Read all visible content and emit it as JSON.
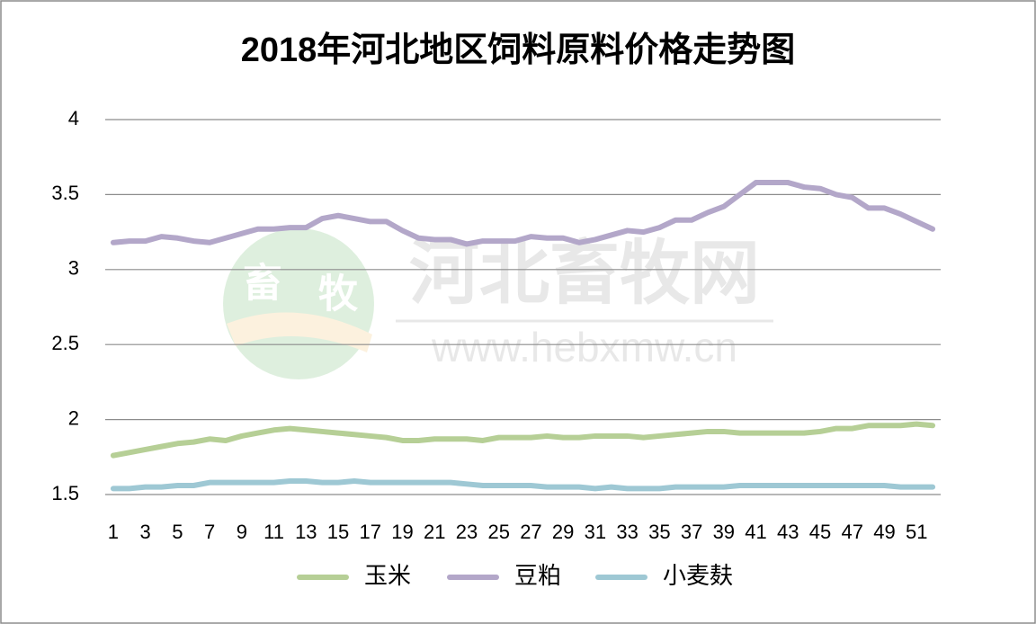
{
  "chart_data": {
    "type": "line",
    "title": "2018年河北地区饲料原料价格走势图",
    "categories": [
      1,
      null,
      3,
      null,
      5,
      null,
      7,
      null,
      9,
      null,
      11,
      null,
      13,
      null,
      15,
      null,
      17,
      null,
      19,
      null,
      21,
      null,
      23,
      null,
      25,
      null,
      27,
      null,
      29,
      null,
      31,
      null,
      33,
      null,
      35,
      null,
      37,
      null,
      39,
      null,
      41,
      null,
      43,
      null,
      45,
      null,
      47,
      null,
      49,
      null,
      51,
      null
    ],
    "series": [
      {
        "name": "玉米",
        "color": "#b6cf96",
        "values": [
          1.76,
          1.78,
          1.8,
          1.82,
          1.84,
          1.85,
          1.87,
          1.86,
          1.89,
          1.91,
          1.93,
          1.94,
          1.93,
          1.92,
          1.91,
          1.9,
          1.89,
          1.88,
          1.86,
          1.86,
          1.87,
          1.87,
          1.87,
          1.86,
          1.88,
          1.88,
          1.88,
          1.89,
          1.88,
          1.88,
          1.89,
          1.89,
          1.89,
          1.88,
          1.89,
          1.9,
          1.91,
          1.92,
          1.92,
          1.91,
          1.91,
          1.91,
          1.91,
          1.91,
          1.92,
          1.94,
          1.94,
          1.96,
          1.96,
          1.96,
          1.97,
          1.96
        ]
      },
      {
        "name": "豆粕",
        "color": "#b3a7c9",
        "values": [
          3.18,
          3.19,
          3.19,
          3.22,
          3.21,
          3.19,
          3.18,
          3.21,
          3.24,
          3.27,
          3.27,
          3.28,
          3.28,
          3.34,
          3.36,
          3.34,
          3.32,
          3.32,
          3.26,
          3.21,
          3.2,
          3.2,
          3.17,
          3.19,
          3.19,
          3.19,
          3.22,
          3.21,
          3.21,
          3.18,
          3.2,
          3.23,
          3.26,
          3.25,
          3.28,
          3.33,
          3.33,
          3.38,
          3.42,
          3.5,
          3.58,
          3.58,
          3.58,
          3.55,
          3.54,
          3.5,
          3.48,
          3.41,
          3.41,
          3.37,
          3.32,
          3.27
        ]
      },
      {
        "name": "小麦麸",
        "color": "#9ec8d4",
        "values": [
          1.54,
          1.54,
          1.55,
          1.55,
          1.56,
          1.56,
          1.58,
          1.58,
          1.58,
          1.58,
          1.58,
          1.59,
          1.59,
          1.58,
          1.58,
          1.59,
          1.58,
          1.58,
          1.58,
          1.58,
          1.58,
          1.58,
          1.57,
          1.56,
          1.56,
          1.56,
          1.56,
          1.55,
          1.55,
          1.55,
          1.54,
          1.55,
          1.54,
          1.54,
          1.54,
          1.55,
          1.55,
          1.55,
          1.55,
          1.56,
          1.56,
          1.56,
          1.56,
          1.56,
          1.56,
          1.56,
          1.56,
          1.56,
          1.56,
          1.55,
          1.55,
          1.55
        ]
      }
    ],
    "ylim": [
      1.5,
      4
    ],
    "yticks": [
      1.5,
      2,
      2.5,
      3,
      3.5,
      4
    ],
    "grid": true,
    "legend": "bottom",
    "watermark": {
      "logo": [
        "畜",
        "牧"
      ],
      "name": "河北畜牧网",
      "url": "www.hebxmw.cn"
    }
  }
}
